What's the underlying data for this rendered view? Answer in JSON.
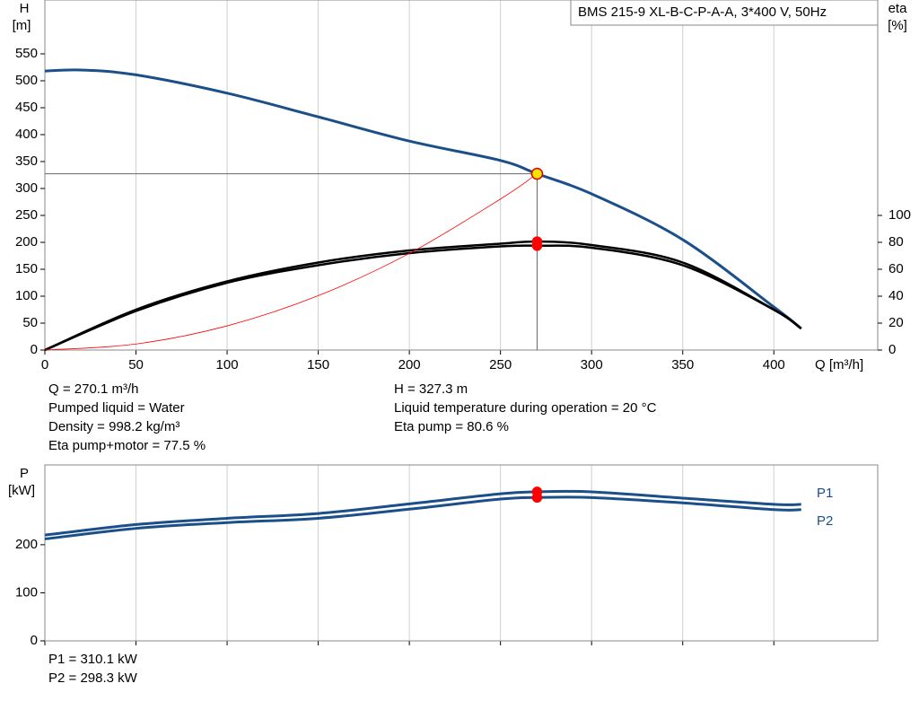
{
  "chart_data": [
    {
      "type": "line",
      "legend_box": "BMS 215-9 XL-B-C-P-A-A, 3*400 V, 50Hz",
      "ylabel": "H",
      "yunit": "[m]",
      "y2label": "eta",
      "y2unit": "[%]",
      "xlabel": "Q [m³/h]",
      "xlim": [
        0,
        457
      ],
      "xticks": [
        0,
        50,
        100,
        150,
        200,
        250,
        300,
        350,
        400
      ],
      "ylim": [
        0,
        650
      ],
      "yticks": [
        0,
        50,
        100,
        150,
        200,
        250,
        300,
        350,
        400,
        450,
        500,
        550
      ],
      "y2lim": [
        0,
        260
      ],
      "y2ticks": [
        0,
        20,
        40,
        60,
        80,
        100
      ],
      "grid": true,
      "series": [
        {
          "color": "#1a4f8a",
          "x": [
            0,
            20,
            50,
            100,
            150,
            200,
            250,
            270.1,
            300,
            350,
            400,
            415
          ],
          "values": [
            518,
            520,
            511,
            477,
            433,
            388,
            352,
            327.3,
            290,
            205,
            80,
            40
          ]
        },
        {
          "color": "#000000",
          "axis": "y2",
          "x": [
            0,
            50,
            100,
            150,
            200,
            250,
            270.1,
            300,
            350,
            400,
            415
          ],
          "values": [
            0,
            30,
            51,
            65,
            74,
            79,
            80.6,
            78,
            65,
            30,
            16
          ]
        },
        {
          "color": "#000000",
          "axis": "y2",
          "x": [
            0,
            50,
            100,
            150,
            200,
            250,
            270.1,
            300,
            350,
            400,
            415
          ],
          "values": [
            0,
            29,
            50,
            63,
            72,
            77,
            77.5,
            76,
            63,
            30,
            16
          ]
        },
        {
          "color": "#ff0000",
          "x": [
            0,
            50,
            100,
            150,
            200,
            250,
            270.1
          ],
          "values": [
            0,
            11.2,
            44.9,
            101,
            179.5,
            280.4,
            327.3
          ]
        }
      ],
      "markers": [
        {
          "x": 270.1,
          "y": 327.3,
          "color": "#f5e400"
        },
        {
          "x": 270.1,
          "y": 80.6,
          "axis": "y2",
          "color": "#ff0000"
        },
        {
          "x": 270.1,
          "y": 77.5,
          "axis": "y2",
          "color": "#ff0000"
        }
      ],
      "info_left": [
        "Q = 270.1 m³/h",
        "Pumped liquid = Water",
        "Density = 998.2 kg/m³",
        "Eta pump+motor = 77.5 %"
      ],
      "info_right": [
        "H = 327.3 m",
        "Liquid temperature during operation = 20 °C",
        "Eta pump = 80.6 %"
      ]
    },
    {
      "type": "line",
      "ylabel": "P",
      "yunit": "[kW]",
      "xlim": [
        0,
        457
      ],
      "ylim": [
        0,
        366
      ],
      "yticks": [
        0,
        100,
        200
      ],
      "series": [
        {
          "name": "P1",
          "color": "#1a4f8a",
          "x": [
            0,
            50,
            100,
            150,
            200,
            250,
            270.1,
            300,
            350,
            400,
            415
          ],
          "values": [
            220,
            242,
            255,
            265,
            285,
            306,
            310.1,
            310,
            297,
            284,
            284
          ]
        },
        {
          "name": "P2",
          "color": "#1a4f8a",
          "x": [
            0,
            50,
            100,
            150,
            200,
            250,
            270.1,
            300,
            350,
            400,
            415
          ],
          "values": [
            212,
            234,
            246,
            255,
            274,
            295,
            298.3,
            298,
            287,
            273,
            273
          ]
        }
      ],
      "markers": [
        {
          "x": 270.1,
          "y": 310.1,
          "color": "#ff0000"
        },
        {
          "x": 270.1,
          "y": 298.3,
          "color": "#ff0000"
        }
      ],
      "info": [
        "P1 = 310.1 kW",
        "P2 = 298.3 kW"
      ]
    }
  ]
}
